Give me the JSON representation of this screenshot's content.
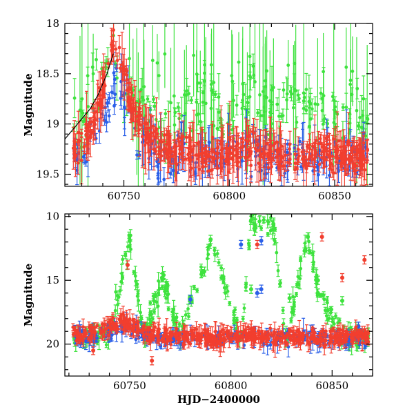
{
  "chart_data": [
    {
      "type": "scatter",
      "panel": "top",
      "title": "",
      "xlabel": "",
      "ylabel": "Magnitude",
      "xlim": [
        60722,
        60868
      ],
      "ylim": [
        19.62,
        18.0
      ],
      "y_inverted": true,
      "xticks": [
        60750,
        60800,
        60850
      ],
      "xtick_labels": [
        "60750",
        "60800",
        "60850"
      ],
      "yticks": [
        18,
        18.5,
        19,
        19.5
      ],
      "ytick_labels": [
        "18",
        "18.5",
        "19",
        "19.5"
      ],
      "grid": false,
      "legend": "none",
      "series": [
        {
          "color": "#3ee23e",
          "x": [
            60728,
            60731,
            60734,
            60737,
            60740,
            60744,
            60747,
            60752,
            60757,
            60763,
            60770,
            60778,
            60786,
            60795,
            60803,
            60811,
            60820,
            60828,
            60836,
            60845,
            60853,
            60862
          ],
          "y": [
            19.05,
            18.85,
            18.7,
            18.6,
            18.55,
            18.2,
            18.35,
            18.7,
            18.9,
            19.0,
            18.95,
            18.85,
            18.8,
            18.9,
            18.85,
            18.7,
            18.9,
            18.8,
            18.85,
            18.95,
            18.9,
            18.85
          ]
        },
        {
          "color": "#2a5fe8",
          "x": [
            60728,
            60734,
            60740,
            60744,
            60747,
            60750,
            60754,
            60758,
            60764,
            60772,
            60780,
            60790,
            60800,
            60810,
            60820,
            60830,
            60840,
            60850,
            60860,
            60866
          ],
          "y": [
            19.3,
            19.2,
            19.0,
            18.75,
            18.6,
            18.75,
            19.0,
            19.25,
            19.3,
            19.35,
            19.3,
            19.35,
            19.3,
            19.3,
            19.35,
            19.3,
            19.35,
            19.35,
            19.3,
            19.3
          ]
        },
        {
          "color": "#f23e2e",
          "x": [
            60726,
            60730,
            60734,
            60738,
            60742,
            60745,
            60748,
            60751,
            60754,
            60758,
            60762,
            60770,
            60780,
            60790,
            60800,
            60810,
            60820,
            60830,
            60840,
            60850,
            60860,
            60866
          ],
          "y": [
            19.25,
            19.2,
            19.05,
            18.8,
            18.45,
            18.15,
            18.3,
            18.55,
            18.8,
            19.0,
            19.15,
            19.25,
            19.3,
            19.3,
            19.3,
            19.25,
            19.3,
            19.35,
            19.3,
            19.3,
            19.35,
            19.3
          ]
        }
      ],
      "model_curve": {
        "color": "#000000",
        "x": [
          60722,
          60726,
          60730,
          60734,
          60738,
          60742,
          60745
        ],
        "y": [
          19.15,
          19.05,
          18.95,
          18.85,
          18.7,
          18.5,
          18.3
        ]
      }
    },
    {
      "type": "scatter",
      "panel": "bottom",
      "title": "",
      "xlabel": "HJD−2400000",
      "ylabel": "Magnitude",
      "xlim": [
        60718,
        60870
      ],
      "ylim": [
        22.5,
        9.8
      ],
      "y_inverted": true,
      "xticks": [
        60750,
        60800,
        60850
      ],
      "xtick_labels": [
        "60750",
        "60800",
        "60850"
      ],
      "yticks": [
        10,
        15,
        20
      ],
      "ytick_labels": [
        "10",
        "15",
        "20"
      ],
      "grid": false,
      "legend": "none",
      "series": [
        {
          "color": "#3ee23e",
          "x": [
            60728,
            60740,
            60750,
            60757,
            60766,
            60775,
            60790,
            60805,
            60810,
            60821,
            60827,
            60838,
            60843,
            60855,
            60864
          ],
          "y": [
            19.4,
            19.3,
            11.9,
            19.6,
            14.8,
            19.4,
            11.8,
            19.5,
            10.3,
            10.6,
            19.5,
            11.6,
            15.5,
            19.6,
            19.4
          ],
          "outliers": [
            [
              60750,
              11.9
            ],
            [
              60766,
              14.8
            ],
            [
              60790,
              11.8
            ],
            [
              60810,
              10.3
            ],
            [
              60810,
              15.7
            ],
            [
              60821,
              10.6
            ],
            [
              60829,
              16.4
            ],
            [
              60838,
              11.6
            ],
            [
              60843,
              15.0
            ],
            [
              60843,
              16.0
            ],
            [
              60855,
              16.6
            ]
          ]
        },
        {
          "color": "#2a5fe8",
          "x": [
            60728,
            60740,
            60746,
            60760,
            60780,
            60800,
            60820,
            60840,
            60860
          ],
          "y": [
            19.4,
            19.2,
            18.4,
            19.5,
            19.6,
            19.5,
            19.5,
            19.6,
            19.6
          ],
          "outliers": [
            [
              60780,
              16.5
            ],
            [
              60805,
              12.2
            ],
            [
              60813,
              16.0
            ],
            [
              60815,
              15.7
            ],
            [
              60815,
              11.9
            ],
            [
              60863,
              18.6
            ]
          ]
        },
        {
          "color": "#f23e2e",
          "x": [
            60726,
            60735,
            60745,
            60755,
            60770,
            60790,
            60810,
            60830,
            60850,
            60866
          ],
          "y": [
            19.2,
            19.0,
            18.2,
            19.0,
            19.4,
            19.5,
            19.4,
            19.5,
            19.5,
            19.4
          ],
          "outliers": [
            [
              60732,
              20.5
            ],
            [
              60749,
              13.8
            ],
            [
              60761,
              21.3
            ],
            [
              60813,
              12.2
            ],
            [
              60845,
              11.6
            ],
            [
              60855,
              14.8
            ],
            [
              60866,
              13.4
            ]
          ]
        }
      ]
    }
  ],
  "colors": {
    "green": "#3ee23e",
    "blue": "#2a5fe8",
    "red": "#f23e2e",
    "axis": "#000000"
  }
}
